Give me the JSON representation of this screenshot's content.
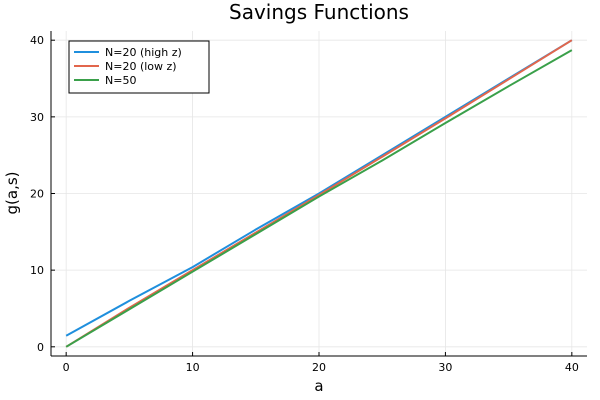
{
  "chart_data": {
    "type": "line",
    "title": "Savings Functions",
    "xlabel": "a",
    "ylabel": "g(a,s)",
    "xlim": [
      -1.2,
      41.2
    ],
    "ylim": [
      -1.2,
      41.2
    ],
    "xticks": [
      0,
      10,
      20,
      30,
      40
    ],
    "yticks": [
      0,
      10,
      20,
      30,
      40
    ],
    "grid": true,
    "legend_position": "top-left",
    "series": [
      {
        "name": "N=20 (high z)",
        "color": "#1f8fdd",
        "x": [
          0,
          5,
          10,
          15,
          20,
          25,
          30,
          35,
          40
        ],
        "y": [
          1.45,
          6.0,
          10.4,
          15.3,
          20.0,
          25.0,
          30.0,
          35.0,
          40.0
        ]
      },
      {
        "name": "N=20 (low z)",
        "color": "#e2664c",
        "x": [
          0,
          5,
          10,
          15,
          20,
          25,
          30,
          35,
          40
        ],
        "y": [
          0.0,
          5.1,
          10.0,
          14.9,
          19.8,
          24.8,
          29.8,
          34.9,
          40.0
        ]
      },
      {
        "name": "N=50",
        "color": "#3aa04a",
        "x": [
          0,
          5,
          10,
          15,
          20,
          25,
          30,
          35,
          40
        ],
        "y": [
          0.0,
          4.9,
          9.8,
          14.7,
          19.6,
          24.3,
          29.2,
          34.0,
          38.7
        ]
      }
    ]
  }
}
